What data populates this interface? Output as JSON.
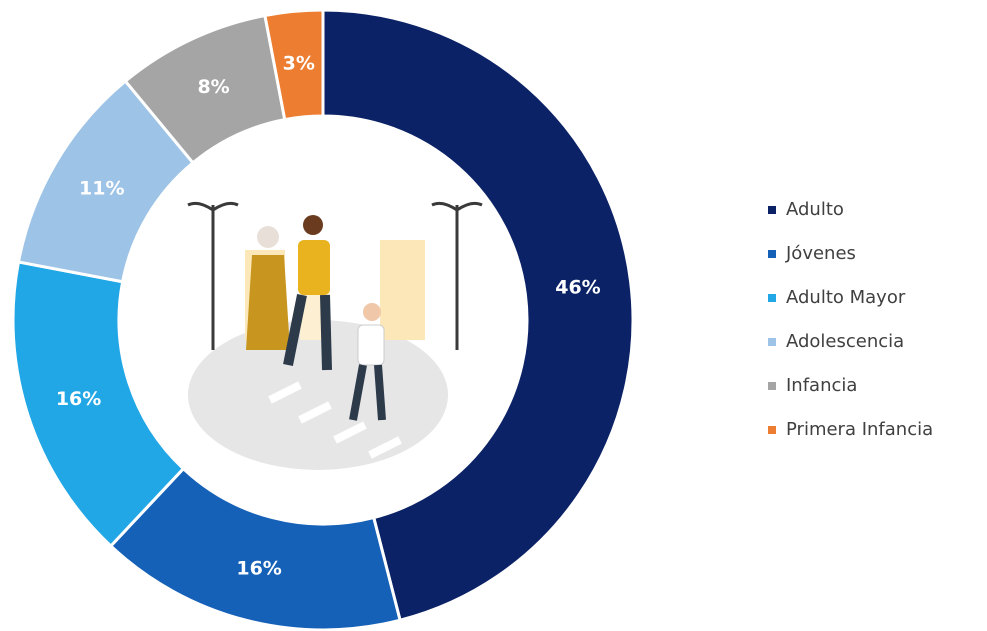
{
  "chart_data": {
    "type": "donut",
    "categories": [
      "Adulto",
      "Jóvenes",
      "Adulto Mayor",
      "Adolescencia",
      "Infancia",
      "Primera Infancia"
    ],
    "values": [
      46,
      16,
      16,
      11,
      8,
      3
    ],
    "value_labels": [
      "46%",
      "16%",
      "16%",
      "11%",
      "8%",
      "3%"
    ],
    "colors": [
      "#0c2266",
      "#1661b8",
      "#21a6e6",
      "#9dc3e6",
      "#a5a5a5",
      "#ed7d31"
    ],
    "legend": "right"
  }
}
